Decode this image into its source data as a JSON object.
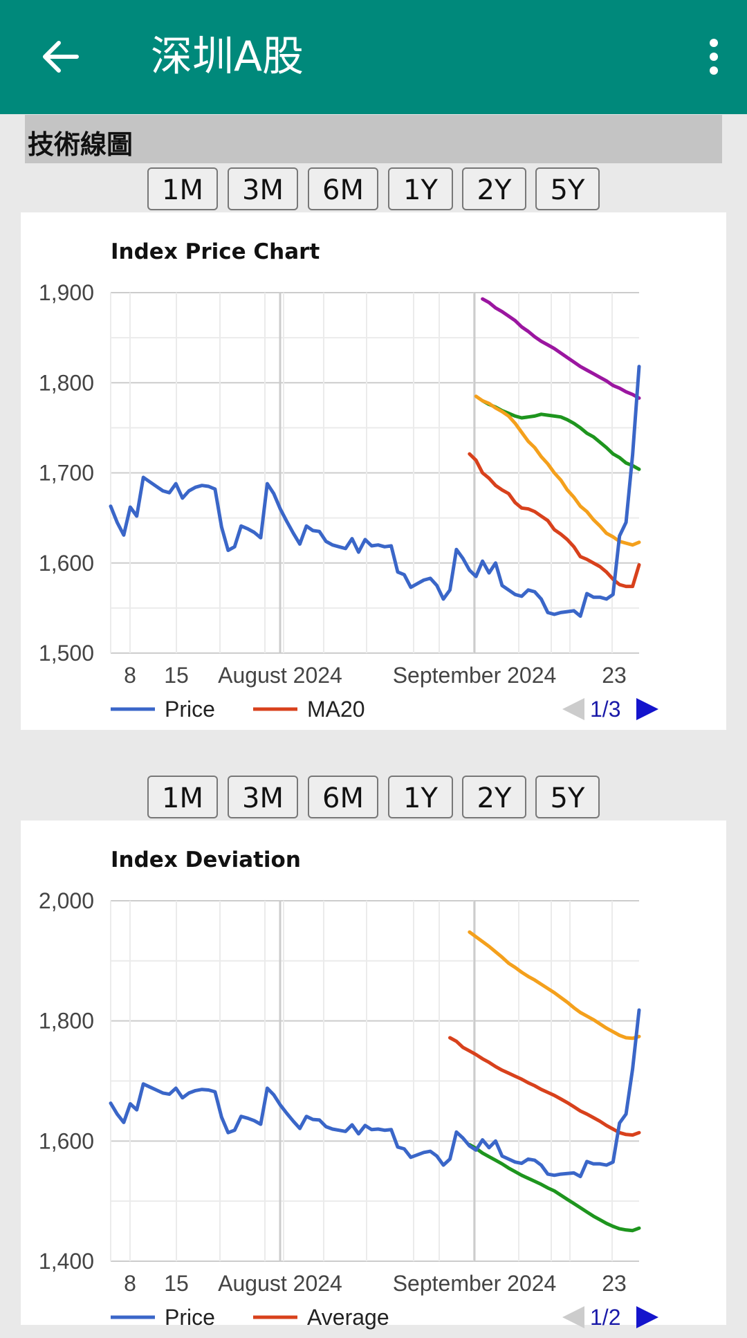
{
  "app": {
    "title": "深圳A股",
    "back_icon": "arrow-left-icon",
    "menu_icon": "more-vert-icon"
  },
  "section": {
    "title": "技術線圖"
  },
  "range_buttons": [
    "1M",
    "3M",
    "6M",
    "1Y",
    "2Y",
    "5Y"
  ],
  "charts": [
    {
      "chart_data": {
        "type": "line",
        "title": "Index Price Chart",
        "x_ticks": [
          "8",
          "15",
          "August 2024",
          "September 2024",
          "23"
        ],
        "ylim": [
          1500,
          1900
        ],
        "y_ticks": [
          "1,900",
          "1,800",
          "1,700",
          "1,600",
          "1,500"
        ],
        "grid": true,
        "legend_position": "bottom",
        "legend": [
          {
            "name": "Price",
            "color": "#3a66c8"
          },
          {
            "name": "MA20",
            "color": "#d8411c"
          }
        ],
        "pager": "1/3",
        "series": [
          {
            "name": "Price",
            "color": "#3a66c8",
            "values": [
              1663,
              1645,
              1631,
              1662,
              1652,
              1695,
              1690,
              1685,
              1680,
              1678,
              1688,
              1672,
              1680,
              1684,
              1686,
              1685,
              1682,
              1640,
              1614,
              1618,
              1641,
              1638,
              1634,
              1628,
              1688,
              1677,
              1660,
              1646,
              1633,
              1621,
              1641,
              1636,
              1635,
              1624,
              1620,
              1618,
              1616,
              1627,
              1612,
              1626,
              1619,
              1620,
              1618,
              1619,
              1590,
              1587,
              1573,
              1577,
              1581,
              1583,
              1575,
              1560,
              1570,
              1615,
              1605,
              1592,
              1585,
              1602,
              1589,
              1600,
              1575,
              1570,
              1565,
              1563,
              1570,
              1568,
              1560,
              1545,
              1543,
              1545,
              1546,
              1547,
              1541,
              1566,
              1562,
              1562,
              1560,
              1565,
              1630,
              1645,
              1720,
              1818
            ]
          },
          {
            "name": "MA20",
            "color": "#d8411c",
            "values": [
              1721,
              1714,
              1700,
              1694,
              1686,
              1681,
              1677,
              1667,
              1661,
              1660,
              1657,
              1652,
              1647,
              1637,
              1632,
              1626,
              1618,
              1607,
              1604,
              1600,
              1596,
              1590,
              1582,
              1576,
              1574,
              1574,
              1598
            ]
          },
          {
            "color": "#f4a01c",
            "values": [
              1785,
              1780,
              1777,
              1772,
              1768,
              1763,
              1755,
              1745,
              1735,
              1728,
              1718,
              1710,
              1700,
              1692,
              1681,
              1673,
              1663,
              1657,
              1648,
              1641,
              1633,
              1629,
              1624,
              1622,
              1620,
              1623
            ]
          },
          {
            "color": "#1e951e",
            "values": [
              1780,
              1776,
              1773,
              1769,
              1766,
              1763,
              1761,
              1762,
              1763,
              1765,
              1764,
              1763,
              1762,
              1759,
              1755,
              1750,
              1744,
              1740,
              1734,
              1728,
              1721,
              1717,
              1711,
              1708,
              1704
            ]
          },
          {
            "color": "#9b16a0",
            "values": [
              1893,
              1889,
              1883,
              1879,
              1874,
              1869,
              1862,
              1857,
              1851,
              1846,
              1842,
              1838,
              1833,
              1828,
              1823,
              1818,
              1814,
              1810,
              1806,
              1802,
              1797,
              1794,
              1790,
              1787,
              1783
            ]
          }
        ]
      }
    },
    {
      "chart_data": {
        "type": "line",
        "title": "Index Deviation",
        "x_ticks": [
          "8",
          "15",
          "August 2024",
          "September 2024",
          "23"
        ],
        "ylim": [
          1400,
          2000
        ],
        "y_ticks": [
          "2,000",
          "1,800",
          "1,600",
          "1,400"
        ],
        "grid": true,
        "legend_position": "bottom",
        "legend": [
          {
            "name": "Price",
            "color": "#3a66c8"
          },
          {
            "name": "Average",
            "color": "#d8411c"
          }
        ],
        "pager": "1/2",
        "series": [
          {
            "name": "Price",
            "color": "#3a66c8",
            "values": [
              1663,
              1645,
              1631,
              1662,
              1652,
              1695,
              1690,
              1685,
              1680,
              1678,
              1688,
              1672,
              1680,
              1684,
              1686,
              1685,
              1682,
              1640,
              1614,
              1618,
              1641,
              1638,
              1634,
              1628,
              1688,
              1677,
              1660,
              1646,
              1633,
              1621,
              1641,
              1636,
              1635,
              1624,
              1620,
              1618,
              1616,
              1627,
              1612,
              1626,
              1619,
              1620,
              1618,
              1619,
              1590,
              1587,
              1573,
              1577,
              1581,
              1583,
              1575,
              1560,
              1570,
              1615,
              1605,
              1592,
              1585,
              1602,
              1589,
              1600,
              1575,
              1570,
              1565,
              1563,
              1570,
              1568,
              1560,
              1545,
              1543,
              1545,
              1546,
              1547,
              1541,
              1566,
              1562,
              1562,
              1560,
              1565,
              1630,
              1645,
              1720,
              1818
            ]
          },
          {
            "name": "Average",
            "color": "#d8411c",
            "values": [
              1772,
              1766,
              1756,
              1750,
              1744,
              1737,
              1731,
              1724,
              1718,
              1713,
              1708,
              1703,
              1697,
              1692,
              1686,
              1681,
              1676,
              1670,
              1664,
              1657,
              1650,
              1645,
              1639,
              1633,
              1626,
              1620,
              1614,
              1611,
              1610,
              1614
            ]
          },
          {
            "color": "#f4a01c",
            "values": [
              1948,
              1940,
              1932,
              1924,
              1915,
              1906,
              1896,
              1889,
              1881,
              1874,
              1868,
              1861,
              1854,
              1847,
              1839,
              1831,
              1822,
              1814,
              1808,
              1802,
              1795,
              1788,
              1782,
              1776,
              1772,
              1771,
              1774
            ]
          },
          {
            "color": "#1e951e",
            "values": [
              1594,
              1588,
              1580,
              1574,
              1568,
              1562,
              1555,
              1549,
              1543,
              1538,
              1533,
              1528,
              1522,
              1517,
              1510,
              1503,
              1496,
              1489,
              1482,
              1475,
              1469,
              1463,
              1458,
              1454,
              1452,
              1451,
              1455
            ]
          }
        ]
      }
    }
  ]
}
